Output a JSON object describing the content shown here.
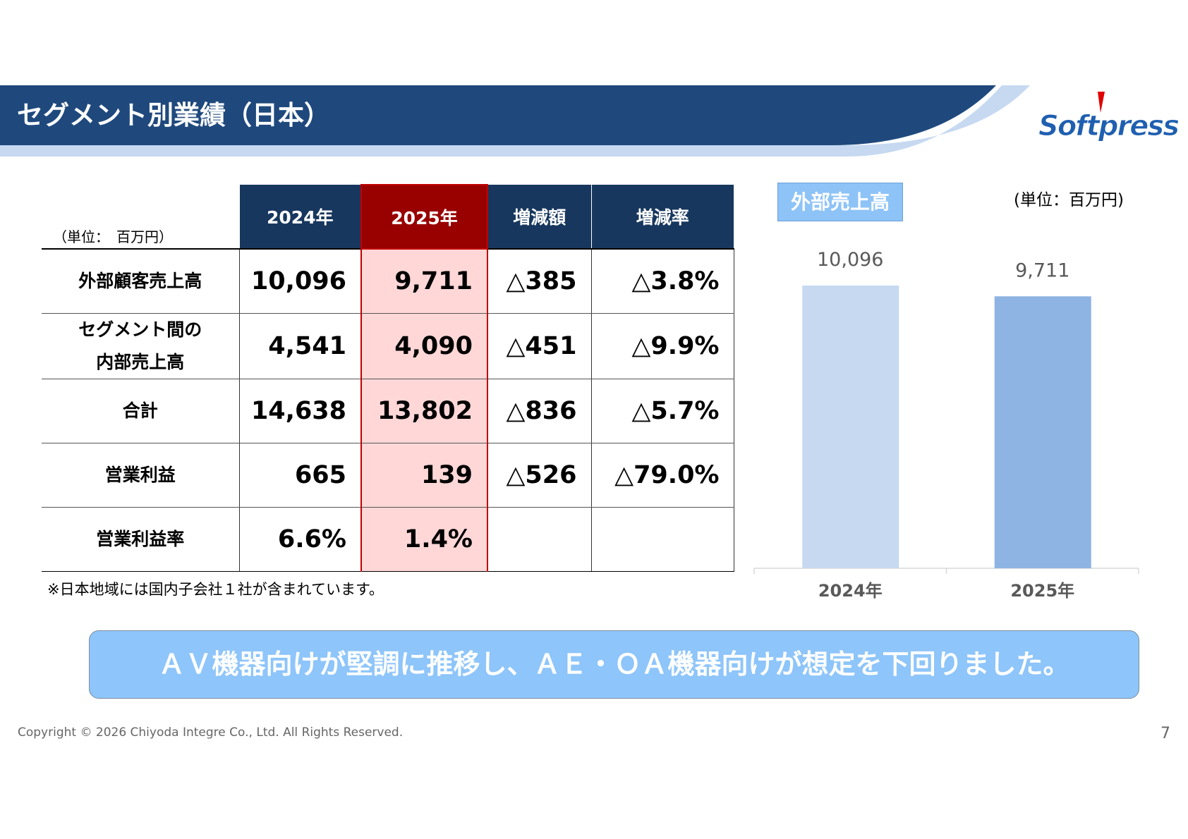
{
  "header": {
    "title": "セグメント別業績（日本）",
    "logo": "Softpress"
  },
  "table": {
    "unit": "（単位：　百万円）",
    "columns": [
      "2024年",
      "2025年",
      "増減額",
      "増減率"
    ],
    "rows": [
      {
        "label": "外部顧客売上高",
        "cells": [
          "10,096",
          "9,711",
          "△385",
          "△3.8%"
        ]
      },
      {
        "label": "セグメント間の\n内部売上高",
        "cells": [
          "4,541",
          "4,090",
          "△451",
          "△9.9%"
        ]
      },
      {
        "label": "合計",
        "cells": [
          "14,638",
          "13,802",
          "△836",
          "△5.7%"
        ]
      },
      {
        "label": "営業利益",
        "cells": [
          "665",
          "139",
          "△526",
          "△79.0%"
        ]
      },
      {
        "label": "営業利益率",
        "cells": [
          "6.6%",
          "1.4%"
        ]
      }
    ],
    "note": "※日本地域には国内子会社１社が含まれています。"
  },
  "chart_data": {
    "type": "bar",
    "title": "外部売上高",
    "unit": "(単位：百万円)",
    "categories": [
      "2024年",
      "2025年"
    ],
    "values": [
      10096,
      9711
    ],
    "value_labels": [
      "10,096",
      "9,711"
    ],
    "colors": [
      "#c6d9f1",
      "#8eb4e3"
    ]
  },
  "callout": "ＡＶ機器向けが堅調に推移し、ＡＥ・ＯＡ機器向けが想定を下回りました。",
  "footer": {
    "copyright": "Copyright © 2026 Chiyoda Integre Co., Ltd. All Rights Reserved.",
    "page": "7"
  }
}
